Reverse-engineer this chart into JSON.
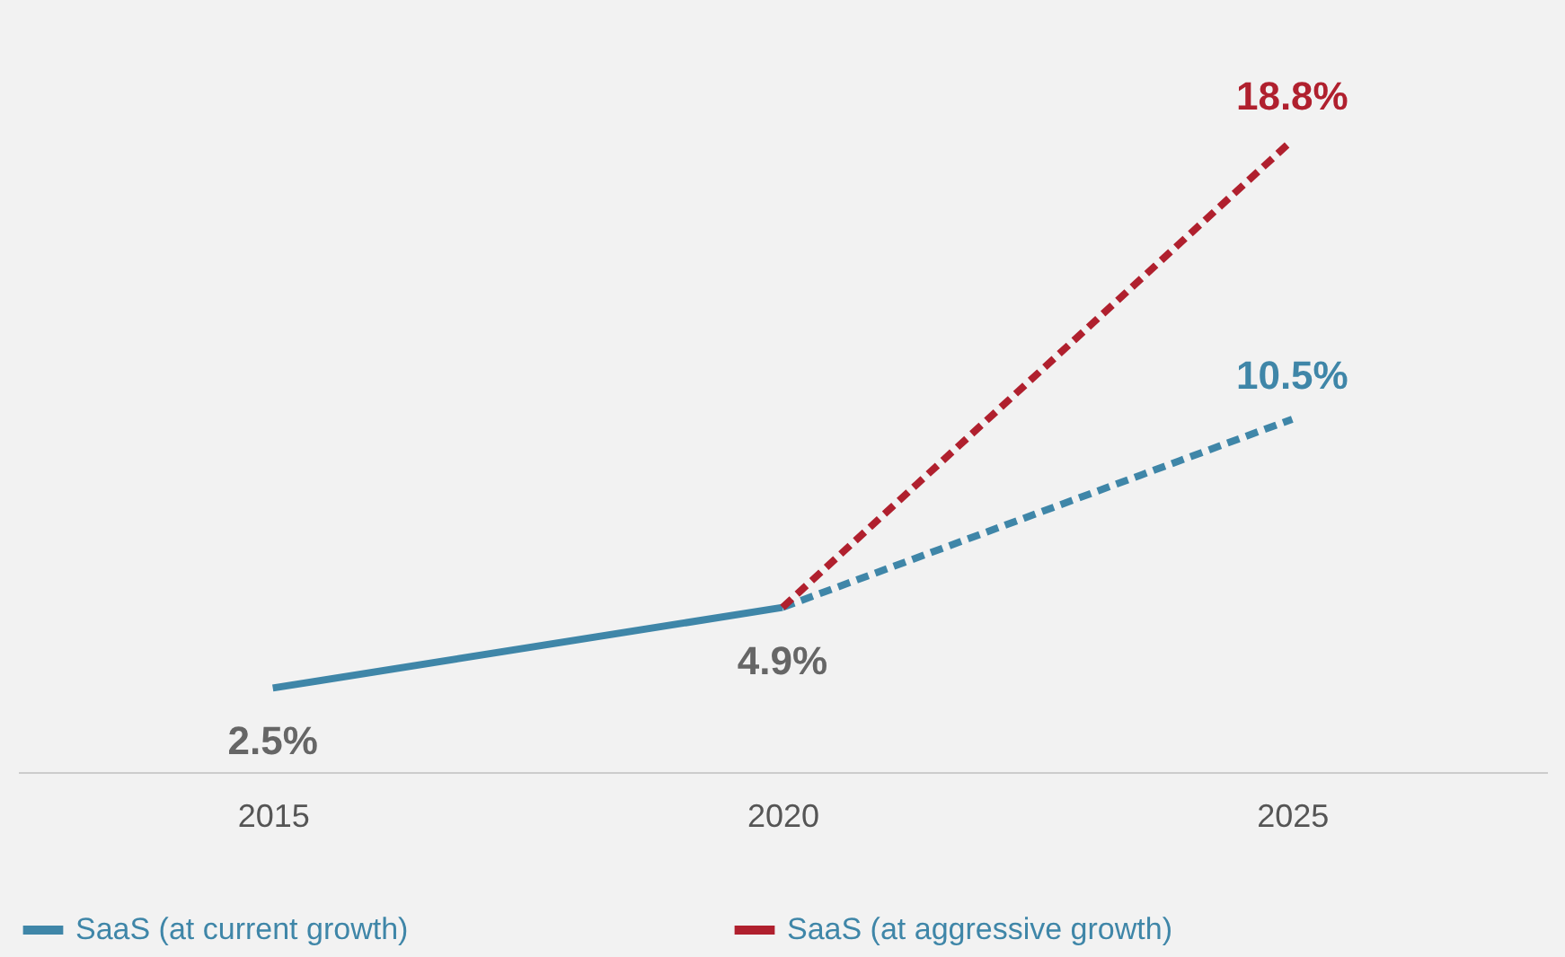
{
  "chart_data": {
    "type": "line",
    "categories": [
      "2015",
      "2020",
      "2025"
    ],
    "series": [
      {
        "name": "SaaS (at current growth)",
        "color": "#3f86a8",
        "line_style": [
          "solid",
          "dashed"
        ],
        "values": [
          2.5,
          4.9,
          10.5
        ],
        "value_labels": [
          "2.5%",
          "4.9%",
          "10.5%"
        ]
      },
      {
        "name": "SaaS (at aggressive growth)",
        "color": "#b0202e",
        "line_style": "dashed",
        "values": [
          null,
          4.9,
          18.8
        ],
        "value_labels": [
          null,
          null,
          "18.8%"
        ]
      }
    ],
    "legend": "bottom",
    "grid": false,
    "marker": "none"
  }
}
